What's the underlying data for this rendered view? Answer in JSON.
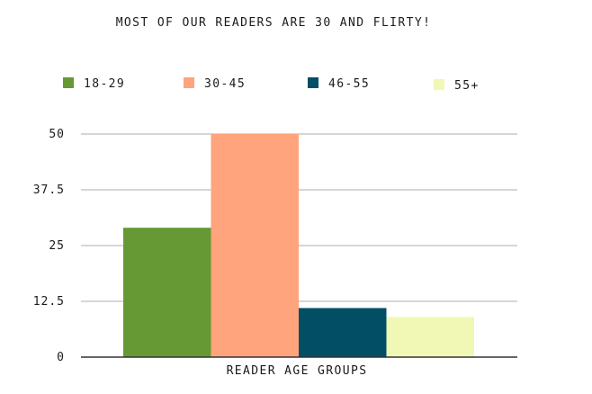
{
  "chart_data": {
    "type": "bar",
    "title": "MOST OF OUR READERS ARE 30 AND FLIRTY!",
    "xlabel": "READER AGE GROUPS",
    "ylabel": "",
    "categories": [
      "READER AGE GROUPS"
    ],
    "series": [
      {
        "name": "18-29",
        "color": "#669933",
        "values": [
          29
        ]
      },
      {
        "name": "30-45",
        "color": "#FFA47C",
        "values": [
          50
        ]
      },
      {
        "name": "46-55",
        "color": "#024F65",
        "values": [
          11
        ]
      },
      {
        "name": "55+",
        "color": "#F1F7B5",
        "values": [
          9
        ]
      }
    ],
    "ylim": [
      0,
      50
    ],
    "yticks": [
      "0",
      "12.5",
      "25",
      "37.5",
      "50"
    ],
    "grid": true,
    "legend_position": "top"
  }
}
